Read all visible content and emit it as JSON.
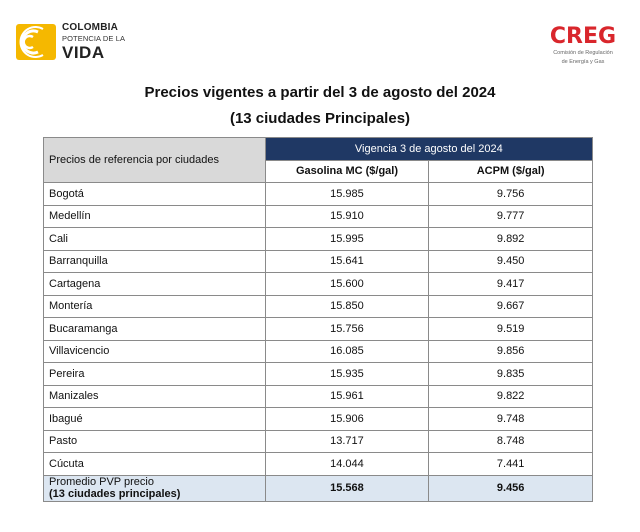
{
  "logo_left": {
    "line1": "COLOMBIA",
    "line2": "POTENCIA DE LA",
    "line3": "VIDA"
  },
  "logo_right": {
    "brand": "CREG",
    "sub1": "Comisión de Regulación",
    "sub2": "de Energía y Gas"
  },
  "title": {
    "line1": "Precios vigentes a partir del 3 de agosto del 2024",
    "line2": "(13 ciudades Principales)"
  },
  "table": {
    "header_label": "Precios de referencia por ciudades",
    "header_vigencia": "Vigencia 3 de agosto del 2024",
    "col_gasolina": "Gasolina MC ($/gal)",
    "col_acpm": "ACPM ($/gal)",
    "rows": [
      {
        "city": "Bogotá",
        "gasolina": "15.985",
        "acpm": "9.756"
      },
      {
        "city": "Medellín",
        "gasolina": "15.910",
        "acpm": "9.777"
      },
      {
        "city": "Cali",
        "gasolina": "15.995",
        "acpm": "9.892"
      },
      {
        "city": "Barranquilla",
        "gasolina": "15.641",
        "acpm": "9.450"
      },
      {
        "city": "Cartagena",
        "gasolina": "15.600",
        "acpm": "9.417"
      },
      {
        "city": "Montería",
        "gasolina": "15.850",
        "acpm": "9.667"
      },
      {
        "city": "Bucaramanga",
        "gasolina": "15.756",
        "acpm": "9.519"
      },
      {
        "city": "Villavicencio",
        "gasolina": "16.085",
        "acpm": "9.856"
      },
      {
        "city": "Pereira",
        "gasolina": "15.935",
        "acpm": "9.835"
      },
      {
        "city": "Manizales",
        "gasolina": "15.961",
        "acpm": "9.822"
      },
      {
        "city": "Ibagué",
        "gasolina": "15.906",
        "acpm": "9.748"
      },
      {
        "city": "Pasto",
        "gasolina": "13.717",
        "acpm": "8.748"
      },
      {
        "city": "Cúcuta",
        "gasolina": "14.044",
        "acpm": "7.441"
      }
    ],
    "average": {
      "label_line1": "Promedio PVP precio",
      "label_line2": "(13 ciudades principales)",
      "gasolina": "15.568",
      "acpm": "9.456"
    }
  },
  "colors": {
    "header_navy": "#1f3864",
    "header_gray": "#d9d9d9",
    "average_row": "#dce6f1",
    "logo_yellow": "#f5b800",
    "creg_red": "#d9262c"
  }
}
